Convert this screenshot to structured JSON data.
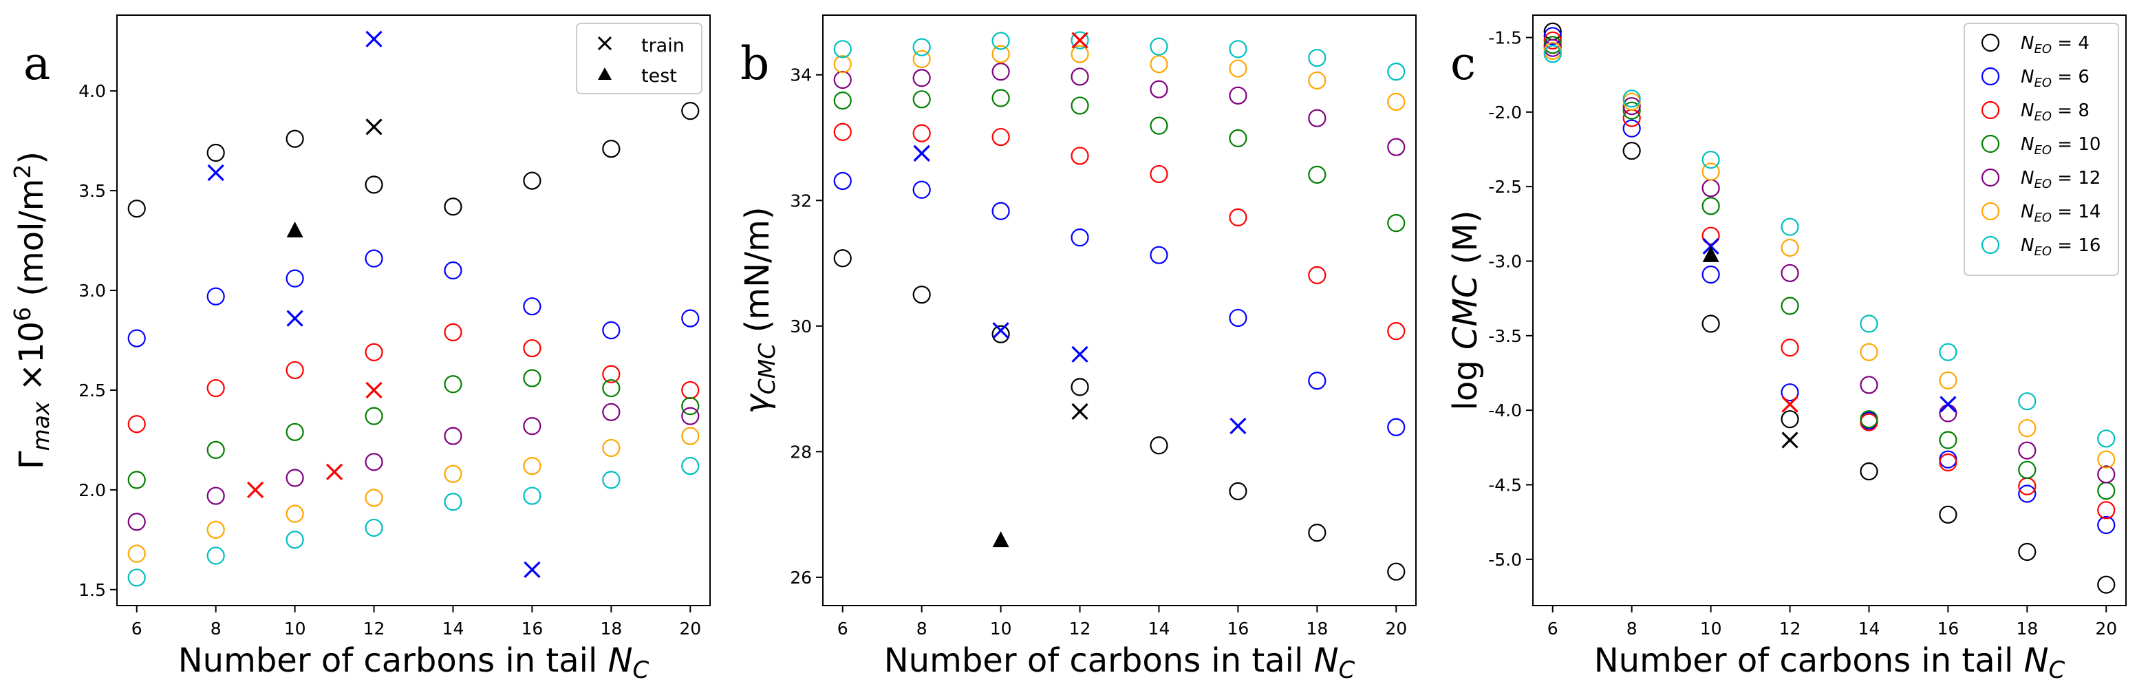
{
  "chart_data": [
    {
      "panel": "a",
      "type": "scatter",
      "xlabel": "Number of carbons in tail N_C",
      "ylabel": "Γ_max ×10^6 (mol/m^2)",
      "xlim": [
        5.5,
        20.5
      ],
      "ylim": [
        1.42,
        4.38
      ],
      "xticks": [
        6,
        8,
        10,
        12,
        14,
        16,
        18,
        20
      ],
      "yticks": [
        1.5,
        2.0,
        2.5,
        3.0,
        3.5,
        4.0
      ],
      "legend": {
        "position": "top-right",
        "entries": [
          {
            "marker": "x",
            "color": "#000000",
            "label": "train"
          },
          {
            "marker": "triangle",
            "color": "#000000",
            "label": "test"
          }
        ]
      },
      "series": [
        {
          "name": "N_EO = 4",
          "marker": "circle",
          "color": "#000000",
          "x": [
            6,
            8,
            10,
            12,
            14,
            16,
            18,
            20
          ],
          "y": [
            3.41,
            3.69,
            3.76,
            3.53,
            3.42,
            3.55,
            3.71,
            3.9
          ]
        },
        {
          "name": "N_EO = 6",
          "marker": "circle",
          "color": "#0000ff",
          "x": [
            6,
            8,
            10,
            12,
            14,
            16,
            18,
            20
          ],
          "y": [
            2.76,
            2.97,
            3.06,
            3.16,
            3.1,
            2.92,
            2.8,
            2.86
          ]
        },
        {
          "name": "N_EO = 8",
          "marker": "circle",
          "color": "#ff0000",
          "x": [
            6,
            8,
            10,
            12,
            14,
            16,
            18,
            20
          ],
          "y": [
            2.33,
            2.51,
            2.6,
            2.69,
            2.79,
            2.71,
            2.58,
            2.5
          ]
        },
        {
          "name": "N_EO = 10",
          "marker": "circle",
          "color": "#008000",
          "x": [
            6,
            8,
            10,
            12,
            14,
            16,
            18,
            20
          ],
          "y": [
            2.05,
            2.2,
            2.29,
            2.37,
            2.53,
            2.56,
            2.51,
            2.42
          ]
        },
        {
          "name": "N_EO = 12",
          "marker": "circle",
          "color": "#800080",
          "x": [
            6,
            8,
            10,
            12,
            14,
            16,
            18,
            20
          ],
          "y": [
            1.84,
            1.97,
            2.06,
            2.14,
            2.27,
            2.32,
            2.39,
            2.37
          ]
        },
        {
          "name": "N_EO = 14",
          "marker": "circle",
          "color": "#ffa500",
          "x": [
            6,
            8,
            10,
            12,
            14,
            16,
            18,
            20
          ],
          "y": [
            1.68,
            1.8,
            1.88,
            1.96,
            2.08,
            2.12,
            2.21,
            2.27
          ]
        },
        {
          "name": "N_EO = 16",
          "marker": "circle",
          "color": "#00bfbf",
          "x": [
            6,
            8,
            10,
            12,
            14,
            16,
            18,
            20
          ],
          "y": [
            1.56,
            1.67,
            1.75,
            1.81,
            1.94,
            1.97,
            2.05,
            2.12
          ]
        },
        {
          "name": "train (black)",
          "marker": "x",
          "color": "#000000",
          "x": [
            12
          ],
          "y": [
            3.82
          ]
        },
        {
          "name": "train (blue)",
          "marker": "x",
          "color": "#0000ff",
          "x": [
            8,
            10,
            12,
            16
          ],
          "y": [
            3.59,
            2.86,
            4.26,
            1.6
          ]
        },
        {
          "name": "train (red)",
          "marker": "x",
          "color": "#ff0000",
          "x": [
            9,
            11,
            12
          ],
          "y": [
            2.0,
            2.09,
            2.5
          ]
        },
        {
          "name": "test",
          "marker": "triangle",
          "color": "#000000",
          "x": [
            10
          ],
          "y": [
            3.3
          ]
        }
      ]
    },
    {
      "panel": "b",
      "type": "scatter",
      "xlabel": "Number of carbons in tail N_C",
      "ylabel": "γ_CMC (mN/m)",
      "xlim": [
        5.5,
        20.5
      ],
      "ylim": [
        25.55,
        34.95
      ],
      "xticks": [
        6,
        8,
        10,
        12,
        14,
        16,
        18,
        20
      ],
      "yticks": [
        26,
        28,
        30,
        32,
        34
      ],
      "series": [
        {
          "name": "N_EO = 4",
          "marker": "circle",
          "color": "#000000",
          "x": [
            6,
            8,
            10,
            12,
            14,
            16,
            18,
            20
          ],
          "y": [
            31.08,
            30.5,
            29.87,
            29.03,
            28.1,
            27.37,
            26.71,
            26.09
          ]
        },
        {
          "name": "N_EO = 6",
          "marker": "circle",
          "color": "#0000ff",
          "x": [
            6,
            8,
            10,
            12,
            14,
            16,
            18,
            20
          ],
          "y": [
            32.31,
            32.17,
            31.83,
            31.41,
            31.13,
            30.13,
            29.13,
            28.39
          ]
        },
        {
          "name": "N_EO = 8",
          "marker": "circle",
          "color": "#ff0000",
          "x": [
            6,
            8,
            10,
            12,
            14,
            16,
            18,
            20
          ],
          "y": [
            33.09,
            33.07,
            33.01,
            32.71,
            32.42,
            31.73,
            30.81,
            29.92
          ]
        },
        {
          "name": "N_EO = 10",
          "marker": "circle",
          "color": "#008000",
          "x": [
            6,
            8,
            10,
            12,
            14,
            16,
            18,
            20
          ],
          "y": [
            33.59,
            33.61,
            33.63,
            33.51,
            33.19,
            32.99,
            32.41,
            31.64
          ]
        },
        {
          "name": "N_EO = 12",
          "marker": "circle",
          "color": "#800080",
          "x": [
            6,
            8,
            10,
            12,
            14,
            16,
            18,
            20
          ],
          "y": [
            33.92,
            33.95,
            34.05,
            33.97,
            33.77,
            33.67,
            33.31,
            32.85
          ]
        },
        {
          "name": "N_EO = 14",
          "marker": "circle",
          "color": "#ffa500",
          "x": [
            6,
            8,
            10,
            12,
            14,
            16,
            18,
            20
          ],
          "y": [
            34.17,
            34.25,
            34.33,
            34.33,
            34.17,
            34.1,
            33.91,
            33.57
          ]
        },
        {
          "name": "N_EO = 16",
          "marker": "circle",
          "color": "#00bfbf",
          "x": [
            6,
            8,
            10,
            12,
            14,
            16,
            18,
            20
          ],
          "y": [
            34.41,
            34.44,
            34.54,
            34.55,
            34.45,
            34.41,
            34.27,
            34.05
          ]
        },
        {
          "name": "train (blue)",
          "marker": "x",
          "color": "#0000ff",
          "x": [
            8,
            10,
            12,
            16
          ],
          "y": [
            32.75,
            29.93,
            29.55,
            28.41
          ]
        },
        {
          "name": "train (black)",
          "marker": "x",
          "color": "#000000",
          "x": [
            12
          ],
          "y": [
            28.64
          ]
        },
        {
          "name": "train (red)",
          "marker": "x",
          "color": "#ff0000",
          "x": [
            12
          ],
          "y": [
            34.55
          ]
        },
        {
          "name": "test",
          "marker": "triangle",
          "color": "#000000",
          "x": [
            10
          ],
          "y": [
            26.59
          ]
        }
      ]
    },
    {
      "panel": "c",
      "type": "scatter",
      "xlabel": "Number of carbons in tail N_C",
      "ylabel": "log CMC (M)",
      "xlim": [
        5.5,
        20.5
      ],
      "ylim": [
        -5.31,
        -1.35
      ],
      "xticks": [
        6,
        8,
        10,
        12,
        14,
        16,
        18,
        20
      ],
      "yticks": [
        -5.0,
        -4.5,
        -4.0,
        -3.5,
        -3.0,
        -2.5,
        -2.0,
        -1.5
      ],
      "legend": {
        "position": "top-right",
        "entries": [
          {
            "marker": "circle",
            "color": "#000000",
            "label": "N_EO = 4"
          },
          {
            "marker": "circle",
            "color": "#0000ff",
            "label": "N_EO = 6"
          },
          {
            "marker": "circle",
            "color": "#ff0000",
            "label": "N_EO = 8"
          },
          {
            "marker": "circle",
            "color": "#008000",
            "label": "N_EO = 10"
          },
          {
            "marker": "circle",
            "color": "#800080",
            "label": "N_EO = 12"
          },
          {
            "marker": "circle",
            "color": "#ffa500",
            "label": "N_EO = 14"
          },
          {
            "marker": "circle",
            "color": "#00bfbf",
            "label": "N_EO = 16"
          }
        ]
      },
      "series": [
        {
          "name": "N_EO = 4",
          "marker": "circle",
          "color": "#000000",
          "x": [
            6,
            8,
            10,
            12,
            14,
            16,
            18,
            20
          ],
          "y": [
            -1.46,
            -2.26,
            -3.42,
            -4.06,
            -4.41,
            -4.7,
            -4.95,
            -5.17
          ]
        },
        {
          "name": "N_EO = 6",
          "marker": "circle",
          "color": "#0000ff",
          "x": [
            6,
            8,
            10,
            12,
            14,
            16,
            18,
            20
          ],
          "y": [
            -1.49,
            -2.11,
            -3.09,
            -3.88,
            -4.07,
            -4.33,
            -4.56,
            -4.77
          ]
        },
        {
          "name": "N_EO = 8",
          "marker": "circle",
          "color": "#ff0000",
          "x": [
            6,
            8,
            10,
            12,
            14,
            16,
            18,
            20
          ],
          "y": [
            -1.52,
            -2.04,
            -2.83,
            -3.58,
            -4.08,
            -4.35,
            -4.51,
            -4.67
          ]
        },
        {
          "name": "N_EO = 10",
          "marker": "circle",
          "color": "#008000",
          "x": [
            6,
            8,
            10,
            12,
            14,
            16,
            18,
            20
          ],
          "y": [
            -1.55,
            -1.99,
            -2.63,
            -3.3,
            -4.06,
            -4.2,
            -4.4,
            -4.54
          ]
        },
        {
          "name": "N_EO = 12",
          "marker": "circle",
          "color": "#800080",
          "x": [
            6,
            8,
            10,
            12,
            14,
            16,
            18,
            20
          ],
          "y": [
            -1.57,
            -1.96,
            -2.51,
            -3.08,
            -3.83,
            -4.02,
            -4.27,
            -4.43
          ]
        },
        {
          "name": "N_EO = 14",
          "marker": "circle",
          "color": "#ffa500",
          "x": [
            6,
            8,
            10,
            12,
            14,
            16,
            18,
            20
          ],
          "y": [
            -1.59,
            -1.93,
            -2.4,
            -2.91,
            -3.61,
            -3.8,
            -4.12,
            -4.33
          ]
        },
        {
          "name": "N_EO = 16",
          "marker": "circle",
          "color": "#00bfbf",
          "x": [
            6,
            8,
            10,
            12,
            14,
            16,
            18,
            20
          ],
          "y": [
            -1.61,
            -1.91,
            -2.32,
            -2.77,
            -3.42,
            -3.61,
            -3.94,
            -4.19
          ]
        },
        {
          "name": "train (blue)",
          "marker": "x",
          "color": "#0000ff",
          "x": [
            10,
            16
          ],
          "y": [
            -2.9,
            -3.96
          ]
        },
        {
          "name": "train (red)",
          "marker": "x",
          "color": "#ff0000",
          "x": [
            12
          ],
          "y": [
            -3.96
          ]
        },
        {
          "name": "train (black)",
          "marker": "x",
          "color": "#000000",
          "x": [
            12
          ],
          "y": [
            -4.2
          ]
        },
        {
          "name": "test",
          "marker": "triangle",
          "color": "#000000",
          "x": [
            10
          ],
          "y": [
            -2.96
          ]
        }
      ]
    }
  ],
  "text": {
    "panel_a_letter": "a",
    "panel_b_letter": "b",
    "panel_c_letter": "c",
    "xlabel": {
      "main": "Number of carbons in tail ",
      "var": "N",
      "sub": "C"
    },
    "ylabel_a": {
      "sym": "Γ",
      "sub": "max",
      "mid": " ×10",
      "exp": "6",
      "unit": " (mol/m",
      "unit_exp": "2",
      "close": ")"
    },
    "ylabel_b": {
      "sym": "γ",
      "sub": "CMC",
      "unit": " (mN/m)"
    },
    "ylabel_c": {
      "pre": "log ",
      "var": "CMC",
      "unit": " (M)"
    },
    "legend_a": {
      "train": "train",
      "test": "test"
    },
    "legend_c": {
      "var": "N",
      "sub": "EO",
      "eq": " = ",
      "values": [
        "4",
        "6",
        "8",
        "10",
        "12",
        "14",
        "16"
      ]
    }
  }
}
